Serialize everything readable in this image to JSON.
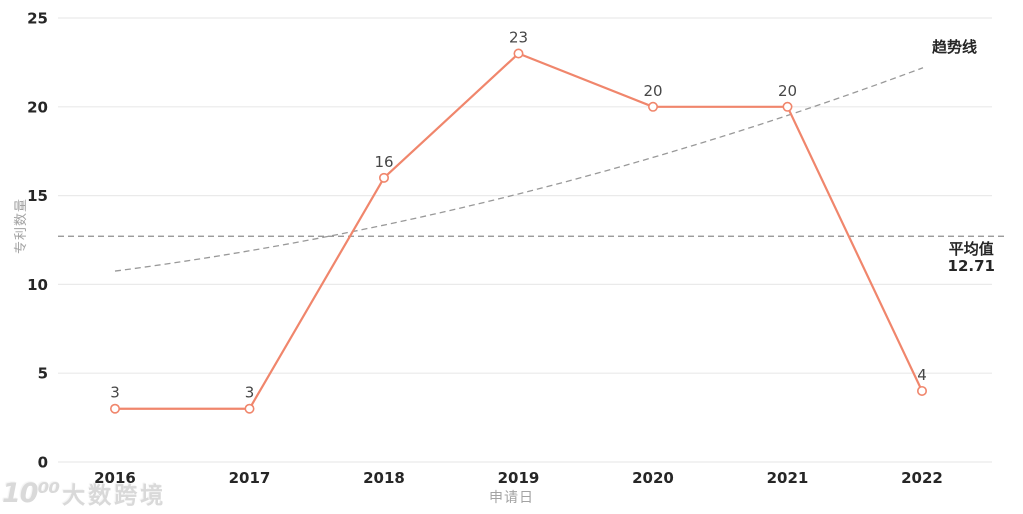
{
  "page": {
    "background": "#ffffff"
  },
  "watermark": {
    "logo_text": "10⁰⁰",
    "brand_text": "大数跨境",
    "color": "#d9d9d9"
  },
  "chart_data": {
    "type": "line",
    "title": "",
    "categories": [
      "2016",
      "2017",
      "2018",
      "2019",
      "2020",
      "2021",
      "2022"
    ],
    "values": [
      3,
      3,
      16,
      23,
      20,
      20,
      4
    ],
    "xlabel": "申请日",
    "ylabel": "专利数量",
    "yticks": [
      0,
      5,
      10,
      15,
      20,
      25
    ],
    "ylim": [
      0,
      25
    ],
    "grid": true,
    "legend_position": "none",
    "average": {
      "value": 12.71,
      "label_title": "平均值",
      "label_value": "12.71",
      "style": "dashed"
    },
    "trendline": {
      "label": "趋势线",
      "start_value": 10.75,
      "mid_value": 15.1,
      "end_value": 22.2,
      "style": "dashed"
    },
    "colors": {
      "series": "#F0866C",
      "marker_fill": "#ffffff",
      "grid": "#eaeaea",
      "average_line": "#8f8f8f",
      "trend_line": "#999999",
      "tick_text": "#262626",
      "data_label": "#474747",
      "annotation_text": "#262626",
      "axis_title": "#a3a3a3"
    }
  }
}
